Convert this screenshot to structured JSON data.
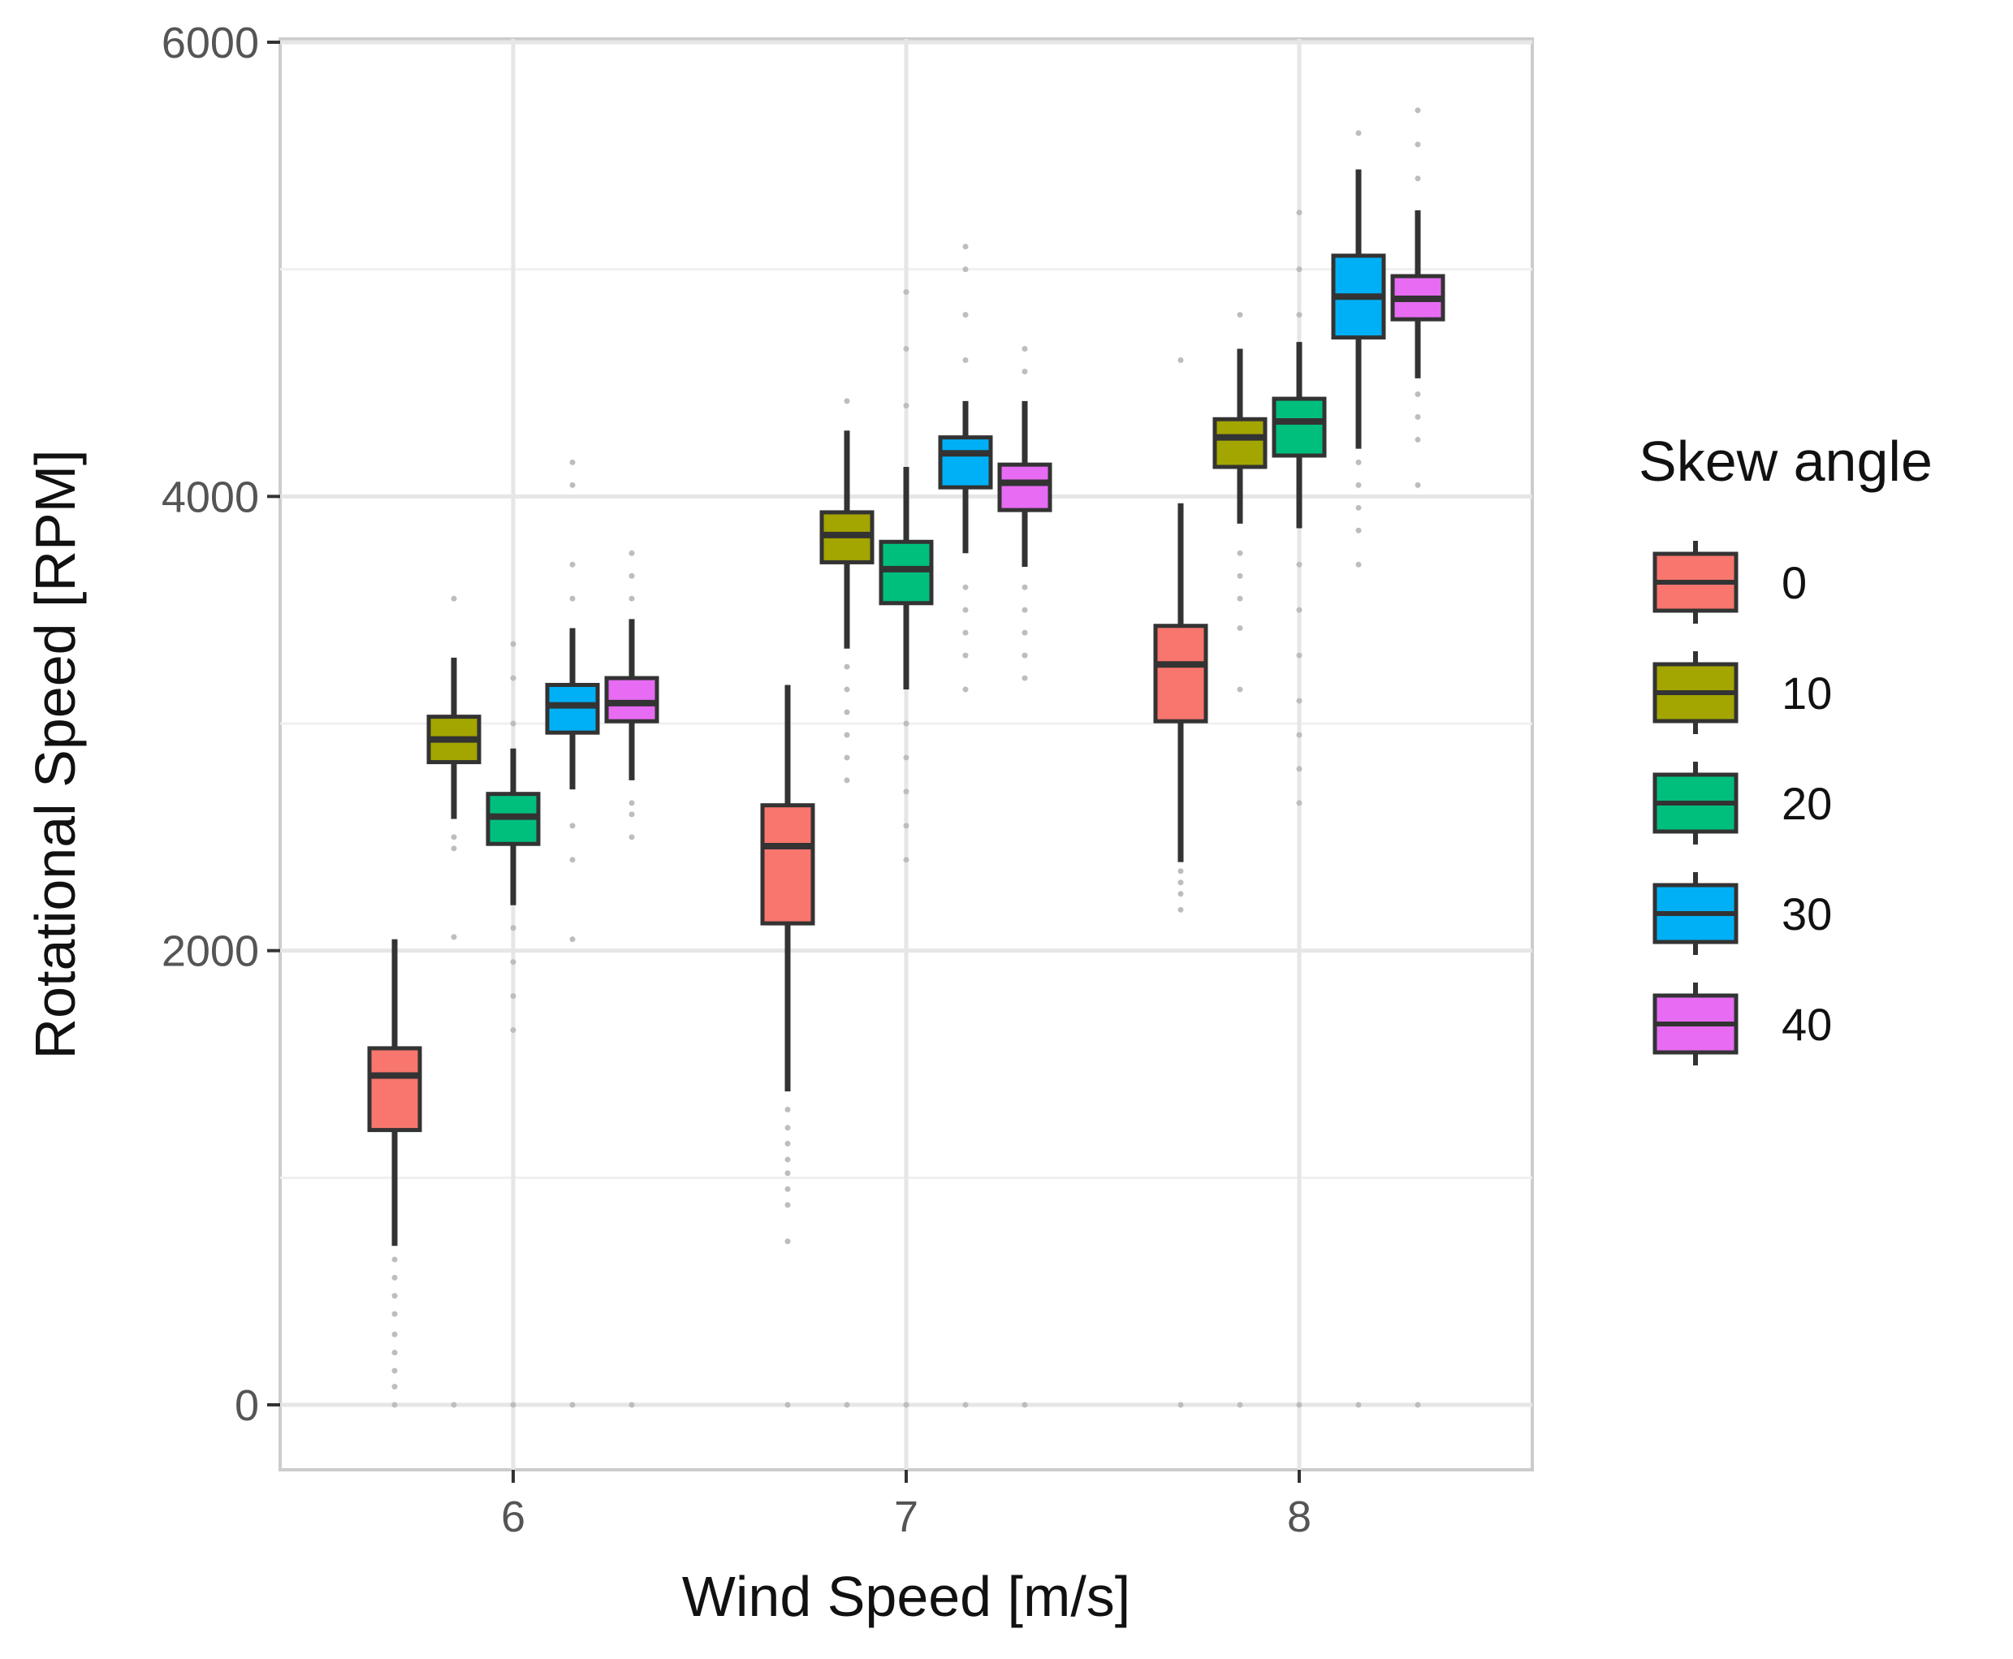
{
  "chart_data": {
    "type": "boxplot",
    "xlabel": "Wind Speed [m/s]",
    "ylabel": "Rotational Speed [RPM]",
    "ylim": [
      -300,
      6000
    ],
    "y_ticks": [
      0,
      2000,
      4000,
      6000
    ],
    "categories": [
      "6",
      "7",
      "8"
    ],
    "legend": {
      "title": "Skew angle",
      "position": "right"
    },
    "grid": true,
    "series": [
      {
        "name": "0",
        "color": "#F8766D",
        "boxes": [
          {
            "category": "6",
            "whisker_low": 700,
            "q1": 1210,
            "median": 1450,
            "q3": 1570,
            "whisker_high": 2050,
            "outliers": [
              0,
              80,
              150,
              230,
              310,
              400,
              480,
              560,
              640
            ]
          },
          {
            "category": "7",
            "whisker_low": 1380,
            "q1": 2120,
            "median": 2460,
            "q3": 2640,
            "whisker_high": 3170,
            "outliers": [
              0,
              720,
              880,
              950,
              1020,
              1080,
              1150,
              1220,
              1300
            ]
          },
          {
            "category": "8",
            "whisker_low": 2390,
            "q1": 3010,
            "median": 3260,
            "q3": 3430,
            "whisker_high": 3970,
            "outliers": [
              0,
              2180,
              2250,
              2300,
              2350,
              4600
            ]
          }
        ]
      },
      {
        "name": "10",
        "color": "#A3A500",
        "boxes": [
          {
            "category": "6",
            "whisker_low": 2580,
            "q1": 2830,
            "median": 2930,
            "q3": 3030,
            "whisker_high": 3290,
            "outliers": [
              0,
              2060,
              2450,
              2500,
              3550
            ]
          },
          {
            "category": "7",
            "whisker_low": 3330,
            "q1": 3710,
            "median": 3830,
            "q3": 3930,
            "whisker_high": 4290,
            "outliers": [
              0,
              2750,
              2850,
              2950,
              3050,
              3150,
              3250,
              4420
            ]
          },
          {
            "category": "8",
            "whisker_low": 3880,
            "q1": 4130,
            "median": 4260,
            "q3": 4340,
            "whisker_high": 4650,
            "outliers": [
              0,
              3150,
              3420,
              3550,
              3650,
              3750,
              4800
            ]
          }
        ]
      },
      {
        "name": "20",
        "color": "#00BF7D",
        "boxes": [
          {
            "category": "6",
            "whisker_low": 2200,
            "q1": 2470,
            "median": 2590,
            "q3": 2690,
            "whisker_high": 2890,
            "outliers": [
              0,
              1650,
              1800,
              1950,
              2100,
              3000,
              3200,
              3350
            ]
          },
          {
            "category": "7",
            "whisker_low": 3150,
            "q1": 3530,
            "median": 3680,
            "q3": 3800,
            "whisker_high": 4130,
            "outliers": [
              0,
              2400,
              2550,
              2700,
              2850,
              3000,
              4400,
              4650,
              4900
            ]
          },
          {
            "category": "8",
            "whisker_low": 3860,
            "q1": 4180,
            "median": 4330,
            "q3": 4430,
            "whisker_high": 4680,
            "outliers": [
              0,
              2650,
              2800,
              2950,
              3100,
              3300,
              3500,
              3700,
              4800,
              5000,
              5250
            ]
          }
        ]
      },
      {
        "name": "30",
        "color": "#00B0F6",
        "boxes": [
          {
            "category": "6",
            "whisker_low": 2710,
            "q1": 2960,
            "median": 3080,
            "q3": 3170,
            "whisker_high": 3420,
            "outliers": [
              0,
              2050,
              2400,
              2550,
              3550,
              3700,
              4050,
              4150
            ]
          },
          {
            "category": "7",
            "whisker_low": 3750,
            "q1": 4040,
            "median": 4190,
            "q3": 4260,
            "whisker_high": 4420,
            "outliers": [
              0,
              3150,
              3300,
              3400,
              3500,
              3600,
              4600,
              4800,
              5000,
              5100
            ]
          },
          {
            "category": "8",
            "whisker_low": 4210,
            "q1": 4700,
            "median": 4880,
            "q3": 5060,
            "whisker_high": 5440,
            "outliers": [
              0,
              3700,
              3850,
              3950,
              4050,
              4150,
              5600
            ]
          }
        ]
      },
      {
        "name": "40",
        "color": "#E76BF3",
        "boxes": [
          {
            "category": "6",
            "whisker_low": 2750,
            "q1": 3010,
            "median": 3090,
            "q3": 3200,
            "whisker_high": 3460,
            "outliers": [
              0,
              2500,
              2600,
              2650,
              3550,
              3650,
              3750
            ]
          },
          {
            "category": "7",
            "whisker_low": 3690,
            "q1": 3940,
            "median": 4060,
            "q3": 4140,
            "whisker_high": 4420,
            "outliers": [
              0,
              3200,
              3300,
              3400,
              3500,
              3600,
              4550,
              4650
            ]
          },
          {
            "category": "8",
            "whisker_low": 4520,
            "q1": 4780,
            "median": 4870,
            "q3": 4970,
            "whisker_high": 5260,
            "outliers": [
              0,
              4050,
              4250,
              4350,
              4450,
              5400,
              5550,
              5700
            ]
          }
        ]
      }
    ]
  }
}
